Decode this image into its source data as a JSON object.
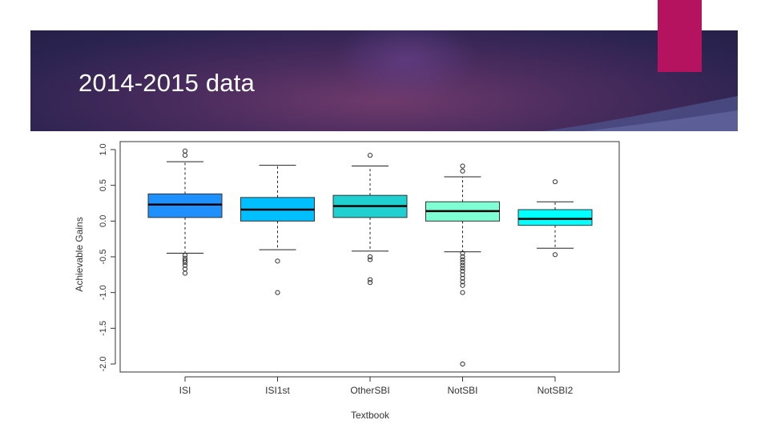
{
  "slide": {
    "title": "2014-2015 data",
    "colors": {
      "banner": "#3a2657",
      "accent": "#b5135f",
      "title_text": "#ffffff"
    }
  },
  "chart_data": {
    "type": "boxplot",
    "xlabel": "Textbook",
    "ylabel": "Achievable Gains",
    "ylim": [
      -2.0,
      1.0
    ],
    "yticks": [
      -2.0,
      -1.5,
      -1.0,
      -0.5,
      0.0,
      0.5,
      1.0
    ],
    "ytick_labels": [
      "-2.0",
      "-1.5",
      "-1.0",
      "-0.5",
      "0.0",
      "0.5",
      "1.0"
    ],
    "categories": [
      "ISI",
      "ISI1st",
      "OtherSBI",
      "NotSBI",
      "NotSBI2"
    ],
    "series": [
      {
        "color": "#1e90ff",
        "whisker_low": -0.45,
        "q1": 0.05,
        "median": 0.23,
        "q3": 0.38,
        "whisker_high": 0.83,
        "outliers": [
          0.98,
          0.92,
          -0.48,
          -0.52,
          -0.55,
          -0.58,
          -0.62,
          -0.67,
          -0.73
        ]
      },
      {
        "color": "#00bfff",
        "whisker_low": -0.4,
        "q1": 0.0,
        "median": 0.16,
        "q3": 0.33,
        "whisker_high": 0.78,
        "outliers": [
          -0.56,
          -1.0
        ]
      },
      {
        "color": "#20d0d0",
        "whisker_low": -0.42,
        "q1": 0.05,
        "median": 0.21,
        "q3": 0.36,
        "whisker_high": 0.77,
        "outliers": [
          0.92,
          -0.5,
          -0.54,
          -0.82,
          -0.86
        ]
      },
      {
        "color": "#7fffd4",
        "whisker_low": -0.43,
        "q1": 0.0,
        "median": 0.14,
        "q3": 0.27,
        "whisker_high": 0.62,
        "outliers": [
          0.77,
          0.7,
          -0.45,
          -0.5,
          -0.54,
          -0.58,
          -0.62,
          -0.66,
          -0.7,
          -0.75,
          -0.8,
          -0.85,
          -0.9,
          -1.0,
          -2.0
        ]
      },
      {
        "color": "#00ffff",
        "whisker_low": -0.38,
        "q1": -0.06,
        "median": 0.03,
        "q3": 0.16,
        "whisker_high": 0.27,
        "outliers": [
          0.55,
          -0.47
        ]
      }
    ],
    "grid": false,
    "legend": "none"
  }
}
